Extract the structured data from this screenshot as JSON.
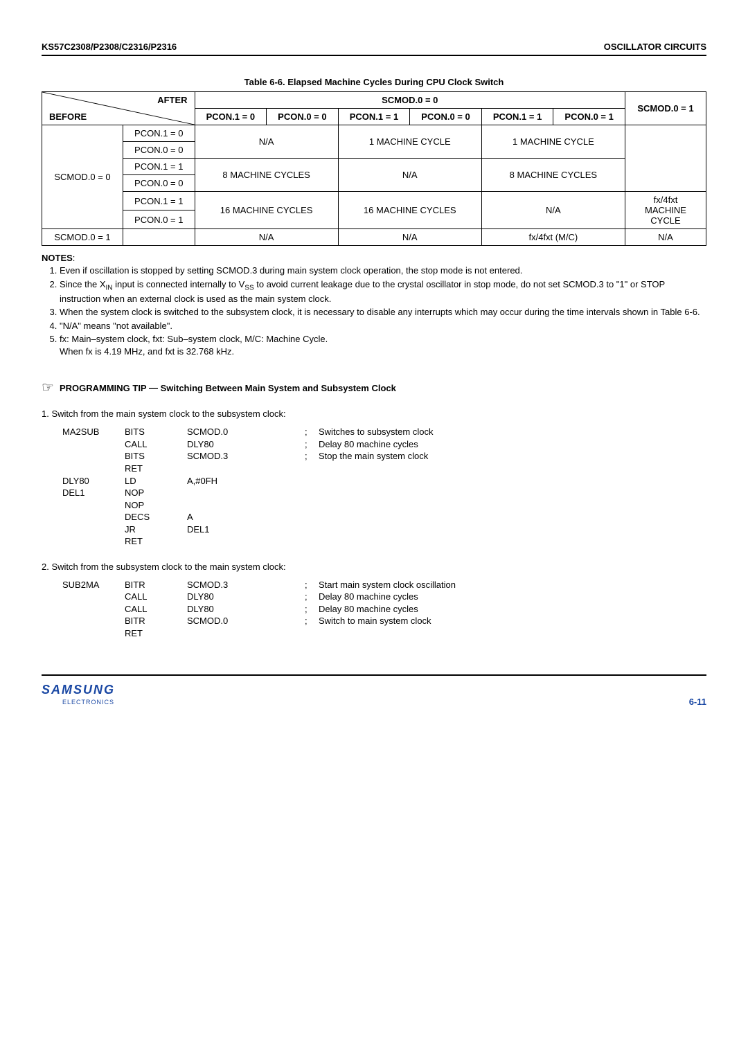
{
  "header": {
    "left": "KS57C2308/P2308/C2316/P2316",
    "right": "OSCILLATOR CIRCUITS"
  },
  "table": {
    "caption": "Table 6-6. Elapsed Machine Cycles During CPU Clock Switch",
    "diag_after": "AFTER",
    "diag_before": "BEFORE",
    "scmod0": "SCMOD.0 = 0",
    "scmod1": "SCMOD.0 = 1",
    "cols": [
      "PCON.1 = 0",
      "PCON.0 = 0",
      "PCON.1 = 1",
      "PCON.0 = 0",
      "PCON.1 = 1",
      "PCON.0 = 1"
    ],
    "left_scmod0": "SCMOD.0 = 0",
    "row_labels": [
      "PCON.1 = 0",
      "PCON.0 = 0",
      "PCON.1 = 1",
      "PCON.0 = 0",
      "PCON.1 = 1",
      "PCON.0 = 1"
    ],
    "cell_na0": "N/A",
    "cell_1mc_a": "1 MACHINE CYCLE",
    "cell_1mc_b": "1 MACHINE CYCLE",
    "cell_8mc_a": "8 MACHINE CYCLES",
    "cell_na1": "N/A",
    "cell_8mc_b": "8 MACHINE CYCLES",
    "cell_na2": "N/A",
    "cell_16mc_a": "16 MACHINE CYCLES",
    "cell_16mc_b": "16 MACHINE CYCLES",
    "cell_na3": "N/A",
    "cell_fx4": "fx/4fxt\nMACHINE\nCYCLE",
    "last_left": "SCMOD.0 = 1",
    "last_na_a": "N/A",
    "last_na_b": "N/A",
    "last_fx": "fx/4fxt (M/C)",
    "last_na_c": "N/A"
  },
  "notes": {
    "heading": "NOTES",
    "items": [
      "Even if oscillation is stopped by setting SCMOD.3 during main system clock operation, the stop mode is not entered.",
      "Since the X₍IN₎ input is connected internally to V₍SS₎ to avoid current leakage due to the crystal oscillator in stop mode, do not set SCMOD.3 to \"1\" or STOP instruction when an external clock is used as the main system clock.",
      "When the system clock is switched to the subsystem clock, it is necessary to disable any interrupts which may occur during the time intervals shown in Table 6-6.",
      "\"N/A\" means \"not available\".",
      "fx: Main–system clock, fxt: Sub–system clock, M/C: Machine Cycle.\nWhen fx is 4.19 MHz, and fxt is 32.768 kHz."
    ]
  },
  "tip": {
    "title": "PROGRAMMING TIP — Switching Between Main System and Subsystem Clock"
  },
  "section1": {
    "heading": "1. Switch from the main system clock to the subsystem clock:",
    "lines": [
      {
        "label": "MA2SUB",
        "op": "BITS",
        "arg": "SCMOD.0",
        "sep": ";",
        "comment": "Switches to subsystem clock"
      },
      {
        "label": "",
        "op": "CALL",
        "arg": "DLY80",
        "sep": ";",
        "comment": "Delay 80 machine cycles"
      },
      {
        "label": "",
        "op": "BITS",
        "arg": "SCMOD.3",
        "sep": ";",
        "comment": "Stop the main system clock"
      },
      {
        "label": "",
        "op": "RET",
        "arg": "",
        "sep": "",
        "comment": ""
      },
      {
        "label": "DLY80",
        "op": "LD",
        "arg": "A,#0FH",
        "sep": "",
        "comment": ""
      },
      {
        "label": "DEL1",
        "op": "NOP",
        "arg": "",
        "sep": "",
        "comment": ""
      },
      {
        "label": "",
        "op": "NOP",
        "arg": "",
        "sep": "",
        "comment": ""
      },
      {
        "label": "",
        "op": "DECS",
        "arg": "A",
        "sep": "",
        "comment": ""
      },
      {
        "label": "",
        "op": "JR",
        "arg": "DEL1",
        "sep": "",
        "comment": ""
      },
      {
        "label": "",
        "op": "RET",
        "arg": "",
        "sep": "",
        "comment": ""
      }
    ]
  },
  "section2": {
    "heading": "2. Switch from the subsystem clock to the main system clock:",
    "lines": [
      {
        "label": "SUB2MA",
        "op": "BITR",
        "arg": "SCMOD.3",
        "sep": ";",
        "comment": "Start main system clock oscillation"
      },
      {
        "label": "",
        "op": "CALL",
        "arg": "DLY80",
        "sep": ";",
        "comment": "Delay 80 machine cycles"
      },
      {
        "label": "",
        "op": "CALL",
        "arg": "DLY80",
        "sep": ";",
        "comment": "Delay 80 machine cycles"
      },
      {
        "label": "",
        "op": "BITR",
        "arg": "SCMOD.0",
        "sep": ";",
        "comment": "Switch to main system clock"
      },
      {
        "label": "",
        "op": "RET",
        "arg": "",
        "sep": "",
        "comment": ""
      }
    ]
  },
  "footer": {
    "logo": "SAMSUNG",
    "logo_sub": "ELECTRONICS",
    "page": "6-11"
  },
  "colors": {
    "accent": "#1947a3"
  }
}
